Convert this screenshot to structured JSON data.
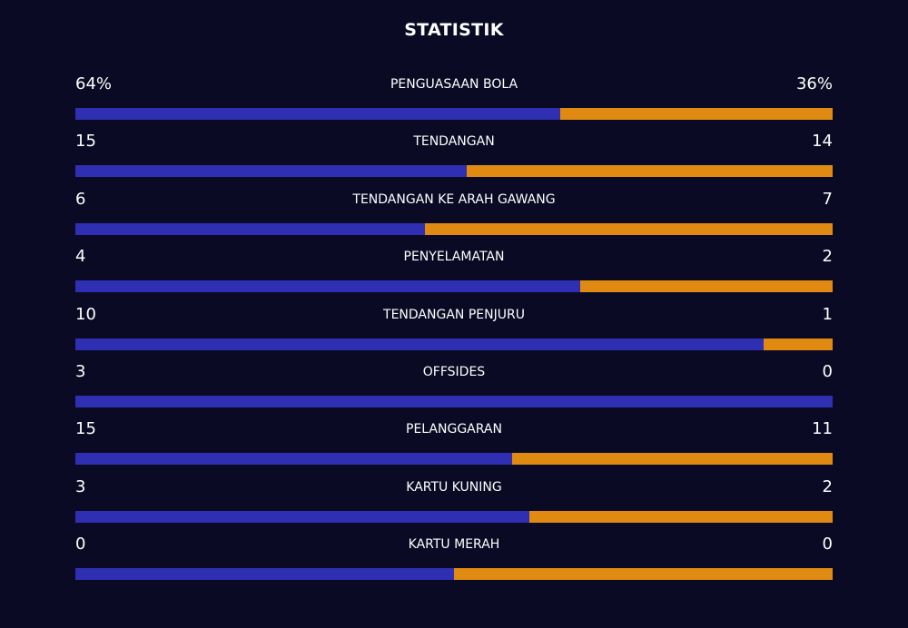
{
  "title": "STATISTIK",
  "colors": {
    "background": "#0a0a24",
    "home": "#2f2fb3",
    "away": "#e08a12"
  },
  "stats": [
    {
      "label": "PENGUASAAN BOLA",
      "home": "64%",
      "away": "36%",
      "home_share": 0.64
    },
    {
      "label": "TENDANGAN",
      "home": "15",
      "away": "14",
      "home_share": 0.517
    },
    {
      "label": "TENDANGAN KE ARAH GAWANG",
      "home": "6",
      "away": "7",
      "home_share": 0.462
    },
    {
      "label": "PENYELAMATAN",
      "home": "4",
      "away": "2",
      "home_share": 0.667
    },
    {
      "label": "TENDANGAN PENJURU",
      "home": "10",
      "away": "1",
      "home_share": 0.909
    },
    {
      "label": "OFFSIDES",
      "home": "3",
      "away": "0",
      "home_share": 1.0
    },
    {
      "label": "PELANGGARAN",
      "home": "15",
      "away": "11",
      "home_share": 0.577
    },
    {
      "label": "KARTU KUNING",
      "home": "3",
      "away": "2",
      "home_share": 0.6
    },
    {
      "label": "KARTU MERAH",
      "home": "0",
      "away": "0",
      "home_share": 0.5
    }
  ]
}
